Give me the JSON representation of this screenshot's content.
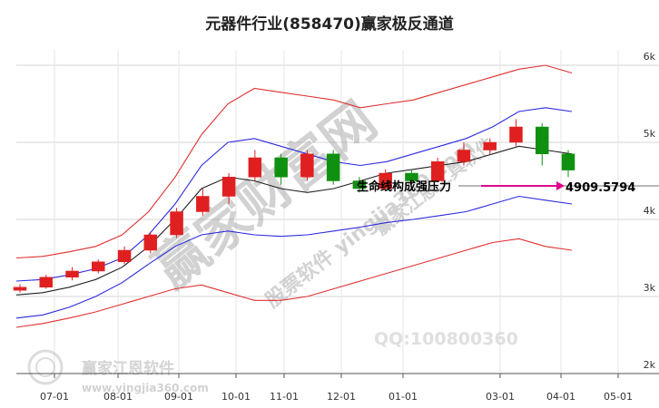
{
  "chart_data": {
    "type": "candlestick",
    "title": "元器件行业(858470)赢家极反通道",
    "x_ticks": [
      "07-01",
      "08-01",
      "09-01",
      "10-01",
      "11-01",
      "12-01",
      "01-01",
      "03-01",
      "04-01",
      "05-01"
    ],
    "y_ticks": [
      "6k",
      "5k",
      "4k",
      "3k",
      "2k"
    ],
    "ylim": [
      2000,
      6200
    ],
    "grid": true,
    "annotation": {
      "text": "生命线构成强压力",
      "value_label": "4909.5794",
      "value": 4909.5794
    },
    "watermarks": [
      "赢家江恩软件",
      "股票软件 yingjia360.com",
      "QQ:100800360",
      "www.yingjia360.com",
      "赢家江恩工具软件",
      "赢家财富网"
    ],
    "series": [
      {
        "name": "",
        "role": "upper-outer",
        "color": "#e03030",
        "values": [
          3500,
          3520,
          3580,
          3650,
          3800,
          4100,
          4550,
          5100,
          5500,
          5700,
          5650,
          5600,
          5550,
          5450,
          5500,
          5550,
          5650,
          5750,
          5850,
          5950,
          6000,
          5900
        ]
      },
      {
        "name": "",
        "role": "upper-inner",
        "color": "#2a2ae0",
        "values": [
          3200,
          3220,
          3280,
          3360,
          3500,
          3800,
          4200,
          4700,
          5000,
          5050,
          4950,
          4850,
          4750,
          4700,
          4750,
          4850,
          4950,
          5050,
          5200,
          5400,
          5450,
          5400
        ]
      },
      {
        "name": "",
        "role": "lifeline",
        "color": "#222222",
        "values": [
          3020,
          3050,
          3120,
          3220,
          3380,
          3650,
          4000,
          4400,
          4550,
          4500,
          4400,
          4350,
          4400,
          4500,
          4600,
          4650,
          4700,
          4750,
          4850,
          4950,
          4900,
          4850
        ]
      },
      {
        "name": "",
        "role": "lower-inner",
        "color": "#2a2ae0",
        "values": [
          2720,
          2760,
          2860,
          3000,
          3180,
          3420,
          3650,
          3800,
          3850,
          3800,
          3780,
          3800,
          3850,
          3900,
          3960,
          4000,
          4050,
          4100,
          4200,
          4300,
          4250,
          4200
        ]
      },
      {
        "name": "",
        "role": "lower-outer",
        "color": "#e03030",
        "values": [
          2600,
          2650,
          2720,
          2800,
          2900,
          3000,
          3100,
          3150,
          3050,
          2950,
          2950,
          3000,
          3100,
          3200,
          3300,
          3400,
          3500,
          3600,
          3700,
          3750,
          3650,
          3600
        ]
      }
    ],
    "candles": [
      {
        "o": 3080,
        "c": 3120,
        "h": 3160,
        "l": 3050
      },
      {
        "o": 3120,
        "c": 3250,
        "h": 3280,
        "l": 3100
      },
      {
        "o": 3250,
        "c": 3330,
        "h": 3380,
        "l": 3210
      },
      {
        "o": 3330,
        "c": 3450,
        "h": 3480,
        "l": 3300
      },
      {
        "o": 3450,
        "c": 3600,
        "h": 3650,
        "l": 3420
      },
      {
        "o": 3600,
        "c": 3800,
        "h": 3840,
        "l": 3560
      },
      {
        "o": 3800,
        "c": 4100,
        "h": 4150,
        "l": 3760
      },
      {
        "o": 4100,
        "c": 4300,
        "h": 4400,
        "l": 4050
      },
      {
        "o": 4300,
        "c": 4550,
        "h": 4600,
        "l": 4200
      },
      {
        "o": 4550,
        "c": 4800,
        "h": 4900,
        "l": 4500
      },
      {
        "o": 4800,
        "c": 4550,
        "h": 4850,
        "l": 4450
      },
      {
        "o": 4550,
        "c": 4850,
        "h": 4900,
        "l": 4500
      },
      {
        "o": 4850,
        "c": 4500,
        "h": 4900,
        "l": 4450
      },
      {
        "o": 4500,
        "c": 4400,
        "h": 4550,
        "l": 4350
      },
      {
        "o": 4400,
        "c": 4600,
        "h": 4650,
        "l": 4380
      },
      {
        "o": 4600,
        "c": 4500,
        "h": 4650,
        "l": 4450
      },
      {
        "o": 4500,
        "c": 4750,
        "h": 4800,
        "l": 4480
      },
      {
        "o": 4750,
        "c": 4900,
        "h": 5000,
        "l": 4700
      },
      {
        "o": 4900,
        "c": 5000,
        "h": 5050,
        "l": 4850
      },
      {
        "o": 5000,
        "c": 5200,
        "h": 5300,
        "l": 4950
      },
      {
        "o": 5200,
        "c": 4850,
        "h": 5250,
        "l": 4700
      },
      {
        "o": 4850,
        "c": 4640,
        "h": 4900,
        "l": 4550
      }
    ],
    "colors": {
      "up": "#e02020",
      "down": "#109010",
      "annotation_arrow": "#e0008c",
      "watermark": "#b0b0b0"
    }
  }
}
